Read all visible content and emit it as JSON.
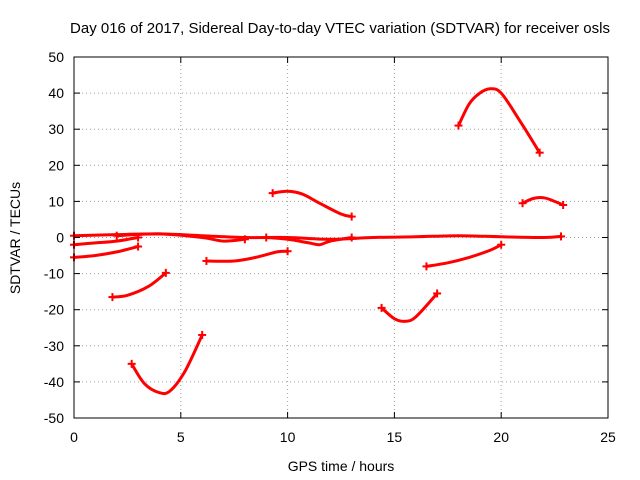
{
  "chart_data": {
    "type": "line",
    "title": "Day 016 of 2017, Sidereal Day-to-day VTEC variation (SDTVAR) for receiver osls",
    "xlabel": "GPS time / hours",
    "ylabel": "SDTVAR / TECUs",
    "xlim": [
      0,
      25
    ],
    "ylim": [
      -50,
      50
    ],
    "xticks": [
      0,
      5,
      10,
      15,
      20,
      25
    ],
    "yticks": [
      -50,
      -40,
      -30,
      -20,
      -10,
      0,
      10,
      20,
      30,
      40,
      50
    ],
    "grid": true,
    "color": "#ff0000",
    "series": [
      {
        "name": "arc-baseline-0",
        "x": [
          0.0,
          2.0,
          4.0,
          6.0,
          8.0,
          10.0,
          12.0,
          14.0,
          16.0,
          18.0,
          20.0,
          22.0,
          22.8
        ],
        "y": [
          0.5,
          0.8,
          1.0,
          0.5,
          0.0,
          0.0,
          -0.5,
          0.0,
          0.2,
          0.5,
          0.2,
          0.0,
          0.3
        ]
      },
      {
        "name": "arc-low-start",
        "x": [
          0.0,
          1.0,
          2.0,
          3.0
        ],
        "y": [
          -5.5,
          -5.0,
          -4.0,
          -2.5
        ]
      },
      {
        "name": "arc-near-zero-a",
        "x": [
          0.0,
          1.0,
          2.0,
          3.0
        ],
        "y": [
          -2.0,
          -1.5,
          -1.0,
          0.0
        ]
      },
      {
        "name": "arc-near-zero-b",
        "x": [
          2.0,
          4.0,
          6.0,
          7.0,
          8.0
        ],
        "y": [
          0.5,
          1.0,
          0.0,
          -1.0,
          -0.5
        ]
      },
      {
        "name": "arc-dip-16",
        "x": [
          1.8,
          2.5,
          3.5,
          4.3
        ],
        "y": [
          -16.5,
          -16.0,
          -13.5,
          -9.8
        ]
      },
      {
        "name": "arc-trough-43",
        "x": [
          2.7,
          3.3,
          4.0,
          4.5,
          5.2,
          6.0
        ],
        "y": [
          -35.0,
          -40.5,
          -43.0,
          -42.5,
          -37.0,
          -27.0
        ]
      },
      {
        "name": "arc-dip-6",
        "x": [
          6.2,
          7.5,
          8.5,
          9.5,
          10.0
        ],
        "y": [
          -6.5,
          -6.5,
          -5.5,
          -4.0,
          -3.8
        ]
      },
      {
        "name": "arc-hump-12",
        "x": [
          9.3,
          10.0,
          10.7,
          11.5,
          12.5,
          13.0
        ],
        "y": [
          12.3,
          12.8,
          12.0,
          9.5,
          6.5,
          5.8
        ]
      },
      {
        "name": "arc-mid",
        "x": [
          9.0,
          10.0,
          11.0,
          11.5,
          12.0,
          13.0
        ],
        "y": [
          0.0,
          -0.5,
          -1.5,
          -2.0,
          -1.0,
          0.0
        ]
      },
      {
        "name": "arc-trough-23",
        "x": [
          14.4,
          15.0,
          15.5,
          16.0,
          17.0
        ],
        "y": [
          -19.5,
          -22.5,
          -23.2,
          -22.0,
          -15.5
        ]
      },
      {
        "name": "arc-rise-neg",
        "x": [
          16.5,
          17.5,
          18.5,
          19.5,
          20.0
        ],
        "y": [
          -8.0,
          -7.0,
          -5.5,
          -3.5,
          -2.0
        ]
      },
      {
        "name": "arc-peak-41",
        "x": [
          18.0,
          18.5,
          19.0,
          19.5,
          20.0,
          20.8,
          21.8
        ],
        "y": [
          31.0,
          37.0,
          40.0,
          41.2,
          40.0,
          33.0,
          23.5
        ]
      },
      {
        "name": "arc-hump-11",
        "x": [
          21.0,
          21.5,
          22.0,
          22.5,
          22.9
        ],
        "y": [
          9.5,
          10.8,
          11.0,
          10.0,
          9.0
        ]
      }
    ]
  }
}
